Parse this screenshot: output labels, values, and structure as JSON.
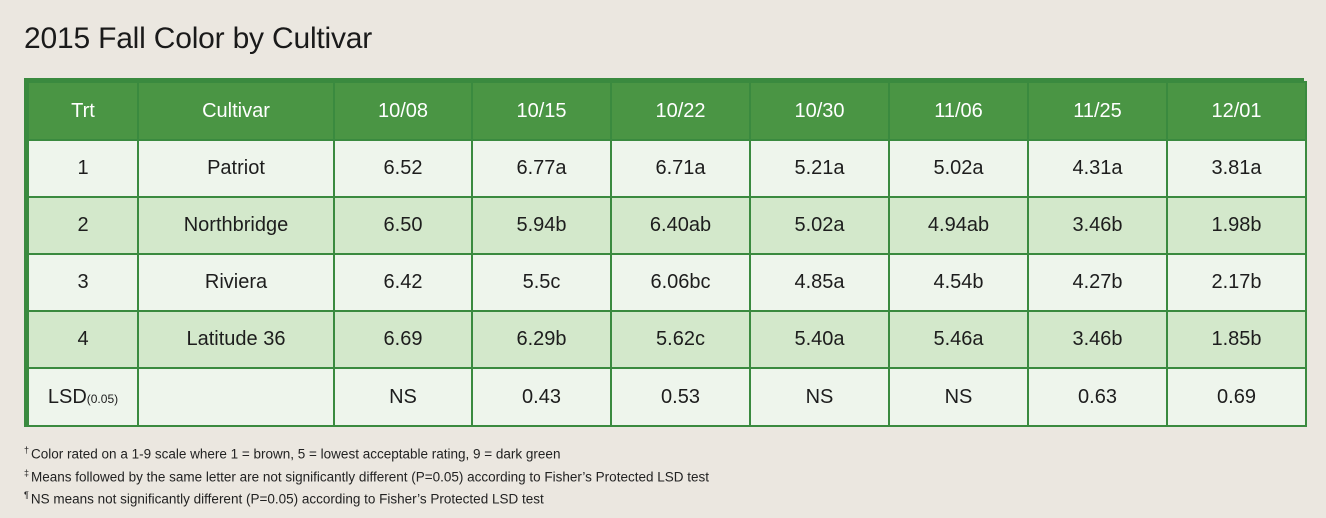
{
  "title": "2015 Fall Color by Cultivar",
  "table": {
    "headers": [
      "Trt",
      "Cultivar",
      "10/08",
      "10/15",
      "10/22",
      "10/30",
      "11/06",
      "11/25",
      "12/01"
    ],
    "rows": [
      [
        "1",
        "Patriot",
        "6.52",
        "6.77a",
        "6.71a",
        "5.21a",
        "5.02a",
        "4.31a",
        "3.81a"
      ],
      [
        "2",
        "Northbridge",
        "6.50",
        "5.94b",
        "6.40ab",
        "5.02a",
        "4.94ab",
        "3.46b",
        "1.98b"
      ],
      [
        "3",
        "Riviera",
        "6.42",
        "5.5c",
        "6.06bc",
        "4.85a",
        "4.54b",
        "4.27b",
        "2.17b"
      ],
      [
        "4",
        "Latitude 36",
        "6.69",
        "6.29b",
        "5.62c",
        "5.40a",
        "5.46a",
        "3.46b",
        "1.85b"
      ]
    ],
    "lsd": {
      "label": "LSD",
      "label_sub": "(0.05)",
      "cultivar": "",
      "values": [
        "NS",
        "0.43",
        "0.53",
        "NS",
        "NS",
        "0.63",
        "0.69"
      ]
    }
  },
  "footnotes": [
    {
      "mark": "†",
      "text": "Color rated on a 1-9 scale where 1 = brown, 5 = lowest acceptable rating, 9 = dark green"
    },
    {
      "mark": "‡",
      "text": "Means followed by the same letter are not significantly different (P=0.05) according to Fisher’s Protected LSD test"
    },
    {
      "mark": "¶",
      "text": "NS means not significantly different (P=0.05) according to Fisher’s Protected LSD test"
    }
  ],
  "colors": {
    "header_bg": "#4a9544",
    "border": "#3a8a3f",
    "row_light": "#eef5ec",
    "row_dark": "#d3e8cb",
    "page_bg": "#ebe7e0"
  }
}
